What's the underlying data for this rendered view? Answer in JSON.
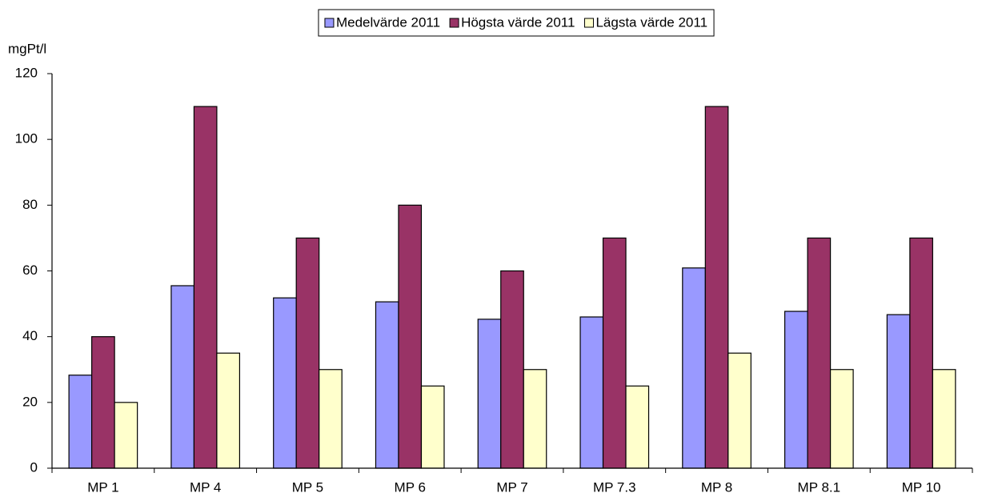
{
  "chart_data": {
    "type": "bar",
    "y_label": "mgPt/l",
    "categories": [
      "MP 1",
      "MP 4",
      "MP 5",
      "MP 6",
      "MP 7",
      "MP 7.3",
      "MP 8",
      "MP 8.1",
      "MP 10"
    ],
    "series": [
      {
        "name": "Medelvärde 2011",
        "color": "#9999ff",
        "values": [
          28.3,
          55.5,
          51.8,
          50.6,
          45.3,
          46,
          60.9,
          47.7,
          46.7
        ]
      },
      {
        "name": "Högsta värde 2011",
        "color": "#993366",
        "values": [
          40,
          110,
          70,
          80,
          60,
          70,
          110,
          70,
          70
        ]
      },
      {
        "name": "Lägsta värde 2011",
        "color": "#ffffcc",
        "values": [
          20,
          35,
          30,
          25,
          30,
          25,
          35,
          30,
          30
        ]
      }
    ],
    "ylim": [
      0,
      120
    ],
    "yticks": [
      0,
      20,
      40,
      60,
      80,
      100,
      120
    ],
    "grid": false,
    "legend": "top"
  }
}
